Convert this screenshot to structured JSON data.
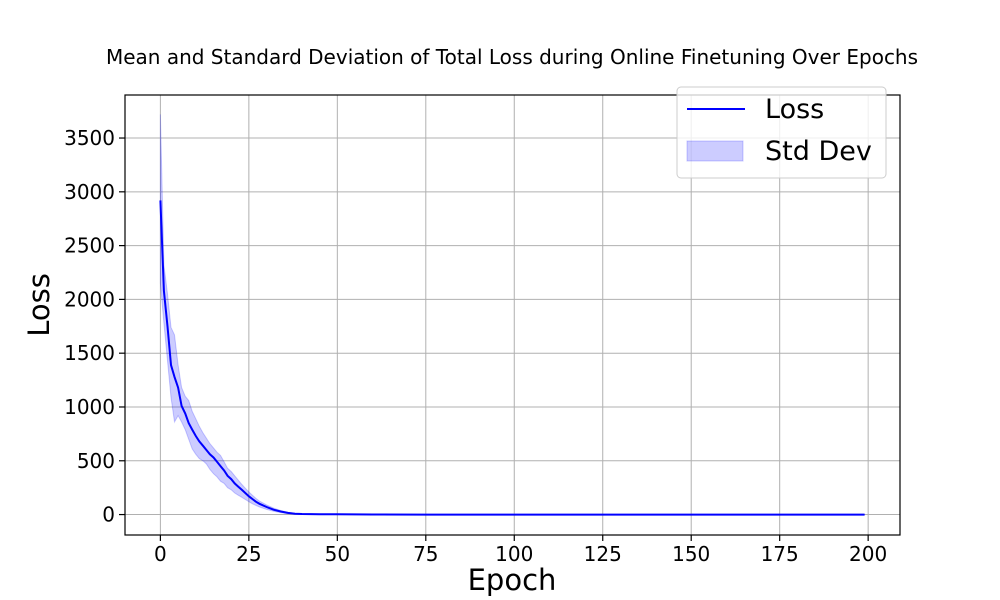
{
  "chart_data": {
    "type": "line",
    "title": "Mean and Standard Deviation of Total Loss during Online Finetuning Over Epochs",
    "xlabel": "Epoch",
    "ylabel": "Loss",
    "xlim": [
      -10,
      209
    ],
    "ylim": [
      -190,
      3900
    ],
    "xticks": [
      0,
      25,
      50,
      75,
      100,
      125,
      150,
      175,
      200
    ],
    "yticks": [
      0,
      500,
      1000,
      1500,
      2000,
      2500,
      3000,
      3500
    ],
    "grid": true,
    "legend_position": "top-right",
    "line_color": "#0000ff",
    "band_color": "#0000ff",
    "series": [
      {
        "name": "Loss",
        "kind": "mean",
        "x": [
          0,
          1,
          2,
          3,
          4,
          5,
          6,
          7,
          8,
          9,
          10,
          11,
          12,
          13,
          14,
          15,
          16,
          17,
          18,
          19,
          20,
          21,
          22,
          23,
          24,
          25,
          26,
          27,
          28,
          30,
          32,
          34,
          36,
          38,
          40,
          45,
          50,
          60,
          75,
          100,
          125,
          150,
          175,
          199
        ],
        "y": [
          2920,
          2080,
          1750,
          1390,
          1280,
          1180,
          1010,
          940,
          850,
          790,
          730,
          680,
          640,
          600,
          560,
          530,
          490,
          450,
          410,
          360,
          330,
          290,
          260,
          230,
          200,
          170,
          145,
          120,
          100,
          70,
          45,
          28,
          15,
          8,
          5,
          3,
          2,
          1,
          0,
          0,
          0,
          0,
          0,
          0
        ]
      },
      {
        "name": "Std Dev",
        "kind": "band",
        "x": [
          0,
          1,
          2,
          3,
          4,
          5,
          6,
          7,
          8,
          9,
          10,
          11,
          12,
          13,
          14,
          15,
          16,
          17,
          18,
          19,
          20,
          21,
          22,
          23,
          24,
          25,
          26,
          27,
          28,
          30,
          32,
          34,
          36,
          38,
          40,
          45,
          50,
          60,
          75,
          100,
          125,
          150,
          175,
          199
        ],
        "upper": [
          3720,
          2320,
          2050,
          1740,
          1670,
          1390,
          1180,
          1100,
          1060,
          960,
          890,
          820,
          760,
          710,
          660,
          620,
          580,
          550,
          490,
          430,
          400,
          360,
          320,
          280,
          245,
          210,
          180,
          150,
          125,
          90,
          60,
          38,
          22,
          12,
          8,
          5,
          3,
          2,
          1,
          1,
          1,
          1,
          1,
          1
        ],
        "lower": [
          2150,
          1780,
          1430,
          1090,
          860,
          920,
          860,
          790,
          700,
          610,
          560,
          520,
          500,
          470,
          420,
          380,
          350,
          310,
          290,
          250,
          230,
          200,
          180,
          160,
          140,
          120,
          100,
          85,
          70,
          48,
          30,
          18,
          8,
          4,
          2,
          1,
          0,
          0,
          0,
          0,
          0,
          0,
          0,
          0
        ]
      }
    ]
  }
}
